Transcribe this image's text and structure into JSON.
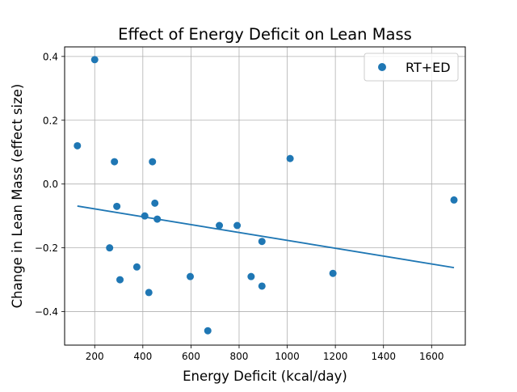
{
  "chart_data": {
    "type": "scatter",
    "title": "Effect of Energy Deficit on Lean Mass",
    "xlabel": "Energy Deficit (kcal/day)",
    "ylabel": "Change in Lean Mass (effect size)",
    "xlim": [
      75,
      1740
    ],
    "ylim": [
      -0.505,
      0.43
    ],
    "xticks": [
      200,
      400,
      600,
      800,
      1000,
      1200,
      1400,
      1600
    ],
    "yticks": [
      -0.4,
      -0.2,
      0.0,
      0.2,
      0.4
    ],
    "xtick_labels": [
      "200",
      "400",
      "600",
      "800",
      "1000",
      "1200",
      "1400",
      "1600"
    ],
    "ytick_labels": [
      "−0.4",
      "−0.2",
      "0.0",
      "0.2",
      "0.4"
    ],
    "grid": true,
    "legend_position": "top-right",
    "series": [
      {
        "name": "RT+ED",
        "color": "#1f77b4",
        "points": [
          {
            "x": 128,
            "y": 0.12
          },
          {
            "x": 200,
            "y": 0.39
          },
          {
            "x": 262,
            "y": -0.2
          },
          {
            "x": 282,
            "y": 0.07
          },
          {
            "x": 292,
            "y": -0.07
          },
          {
            "x": 305,
            "y": -0.3
          },
          {
            "x": 375,
            "y": -0.26
          },
          {
            "x": 408,
            "y": -0.1
          },
          {
            "x": 425,
            "y": -0.34
          },
          {
            "x": 440,
            "y": 0.07
          },
          {
            "x": 450,
            "y": -0.06
          },
          {
            "x": 460,
            "y": -0.11
          },
          {
            "x": 597,
            "y": -0.29
          },
          {
            "x": 670,
            "y": -0.46
          },
          {
            "x": 718,
            "y": -0.13
          },
          {
            "x": 792,
            "y": -0.13
          },
          {
            "x": 850,
            "y": -0.29
          },
          {
            "x": 895,
            "y": -0.18
          },
          {
            "x": 895,
            "y": -0.32
          },
          {
            "x": 1012,
            "y": 0.08
          },
          {
            "x": 1190,
            "y": -0.28
          },
          {
            "x": 1693,
            "y": -0.05
          }
        ]
      }
    ],
    "trendline": {
      "color": "#1f77b4",
      "x": [
        128,
        1693
      ],
      "y": [
        -0.069,
        -0.262
      ]
    }
  }
}
